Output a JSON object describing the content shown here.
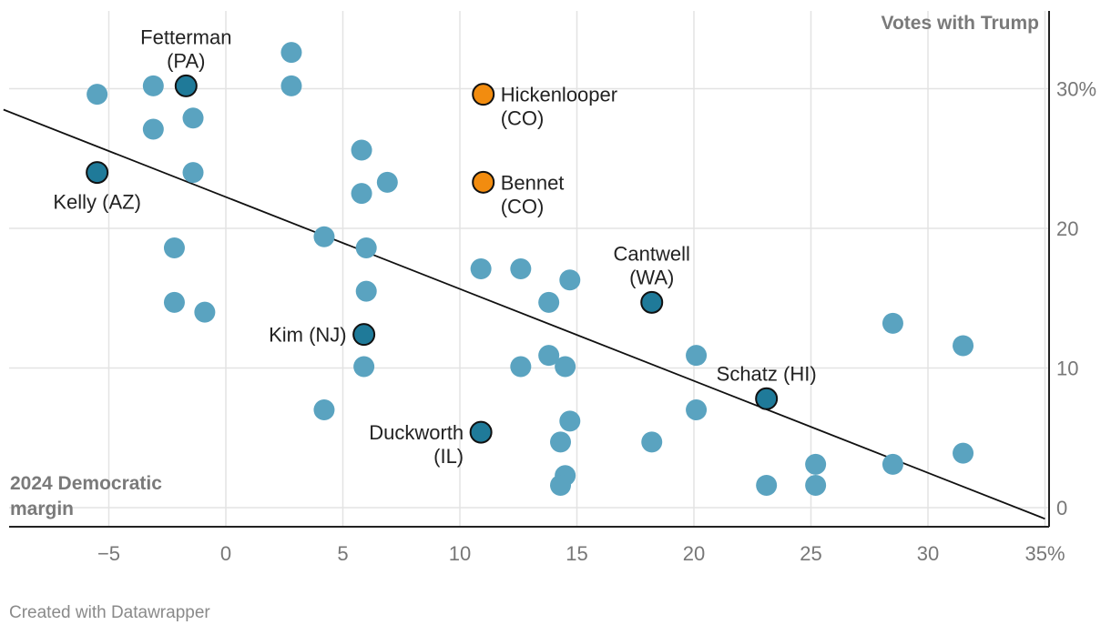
{
  "chart_data": {
    "type": "scatter",
    "xlabel": "2024 Democratic margin",
    "ylabel": "Votes with Trump",
    "xlim": [
      -9.5,
      35
    ],
    "ylim": [
      -1.5,
      36
    ],
    "x_ticks": [
      {
        "value": -5,
        "label": "−5"
      },
      {
        "value": 0,
        "label": "0"
      },
      {
        "value": 5,
        "label": "5"
      },
      {
        "value": 10,
        "label": "10"
      },
      {
        "value": 15,
        "label": "15"
      },
      {
        "value": 20,
        "label": "20"
      },
      {
        "value": 25,
        "label": "25"
      },
      {
        "value": 30,
        "label": "30"
      },
      {
        "value": 35,
        "label": "35%"
      }
    ],
    "y_ticks": [
      {
        "value": 0,
        "label": "0"
      },
      {
        "value": 10,
        "label": "10"
      },
      {
        "value": 20,
        "label": "20"
      },
      {
        "value": 30,
        "label": "30%"
      }
    ],
    "grid": true,
    "colors": {
      "default": "#5aa3c0",
      "highlight": "#1f7a99",
      "orange": "#f28c0f",
      "trend": "#111111",
      "grid": "#e3e3e3"
    },
    "points": [
      {
        "x": -5.5,
        "y": 29.6
      },
      {
        "x": -3.1,
        "y": 30.2
      },
      {
        "x": -3.1,
        "y": 27.1
      },
      {
        "x": -1.4,
        "y": 27.9
      },
      {
        "x": -1.4,
        "y": 24.0
      },
      {
        "x": 2.8,
        "y": 32.6
      },
      {
        "x": 2.8,
        "y": 30.2
      },
      {
        "x": 5.8,
        "y": 25.6
      },
      {
        "x": 5.8,
        "y": 22.5
      },
      {
        "x": 6.9,
        "y": 23.3
      },
      {
        "x": -2.2,
        "y": 18.6
      },
      {
        "x": 4.2,
        "y": 19.4
      },
      {
        "x": 6.0,
        "y": 18.6
      },
      {
        "x": 6.0,
        "y": 15.5
      },
      {
        "x": -2.2,
        "y": 14.7
      },
      {
        "x": -0.9,
        "y": 14.0
      },
      {
        "x": 10.9,
        "y": 17.1
      },
      {
        "x": 12.6,
        "y": 17.1
      },
      {
        "x": 14.7,
        "y": 16.3
      },
      {
        "x": 13.8,
        "y": 14.7
      },
      {
        "x": 5.9,
        "y": 10.1
      },
      {
        "x": 12.6,
        "y": 10.1
      },
      {
        "x": 13.8,
        "y": 10.9
      },
      {
        "x": 14.5,
        "y": 10.1
      },
      {
        "x": 20.1,
        "y": 10.9
      },
      {
        "x": 28.5,
        "y": 13.2
      },
      {
        "x": 31.5,
        "y": 11.6
      },
      {
        "x": 4.2,
        "y": 7.0
      },
      {
        "x": 14.7,
        "y": 6.2
      },
      {
        "x": 20.1,
        "y": 7.0
      },
      {
        "x": 14.3,
        "y": 4.7
      },
      {
        "x": 18.2,
        "y": 4.7
      },
      {
        "x": 14.5,
        "y": 2.3
      },
      {
        "x": 14.3,
        "y": 1.6
      },
      {
        "x": 23.1,
        "y": 1.6
      },
      {
        "x": 25.2,
        "y": 3.1
      },
      {
        "x": 25.2,
        "y": 1.6
      },
      {
        "x": 28.5,
        "y": 3.1
      },
      {
        "x": 31.5,
        "y": 3.9
      }
    ],
    "highlighted": [
      {
        "x": -1.7,
        "y": 30.2,
        "color": "highlight",
        "label_lines": [
          "Fetterman",
          "(PA)"
        ],
        "label_pos": "above"
      },
      {
        "x": -5.5,
        "y": 24.0,
        "color": "highlight",
        "label_lines": [
          "Kelly (AZ)"
        ],
        "label_pos": "below"
      },
      {
        "x": 11.0,
        "y": 29.6,
        "color": "orange",
        "label_lines": [
          "Hickenlooper",
          "(CO)"
        ],
        "label_pos": "right"
      },
      {
        "x": 11.0,
        "y": 23.3,
        "color": "orange",
        "label_lines": [
          "Bennet",
          "(CO)"
        ],
        "label_pos": "right"
      },
      {
        "x": 18.2,
        "y": 14.7,
        "color": "highlight",
        "label_lines": [
          "Cantwell",
          "(WA)"
        ],
        "label_pos": "above"
      },
      {
        "x": 5.9,
        "y": 12.4,
        "color": "highlight",
        "label_lines": [
          "Kim (NJ)"
        ],
        "label_pos": "left"
      },
      {
        "x": 23.1,
        "y": 7.8,
        "color": "highlight",
        "label_lines": [
          "Schatz (HI)"
        ],
        "label_pos": "above"
      },
      {
        "x": 10.9,
        "y": 5.4,
        "color": "highlight",
        "label_lines": [
          "Duckworth",
          "(IL)"
        ],
        "label_pos": "left"
      }
    ],
    "trendline": {
      "x": [
        -9.5,
        35
      ],
      "y": [
        28.5,
        -0.8
      ]
    }
  },
  "footer": "Created with Datawrapper"
}
